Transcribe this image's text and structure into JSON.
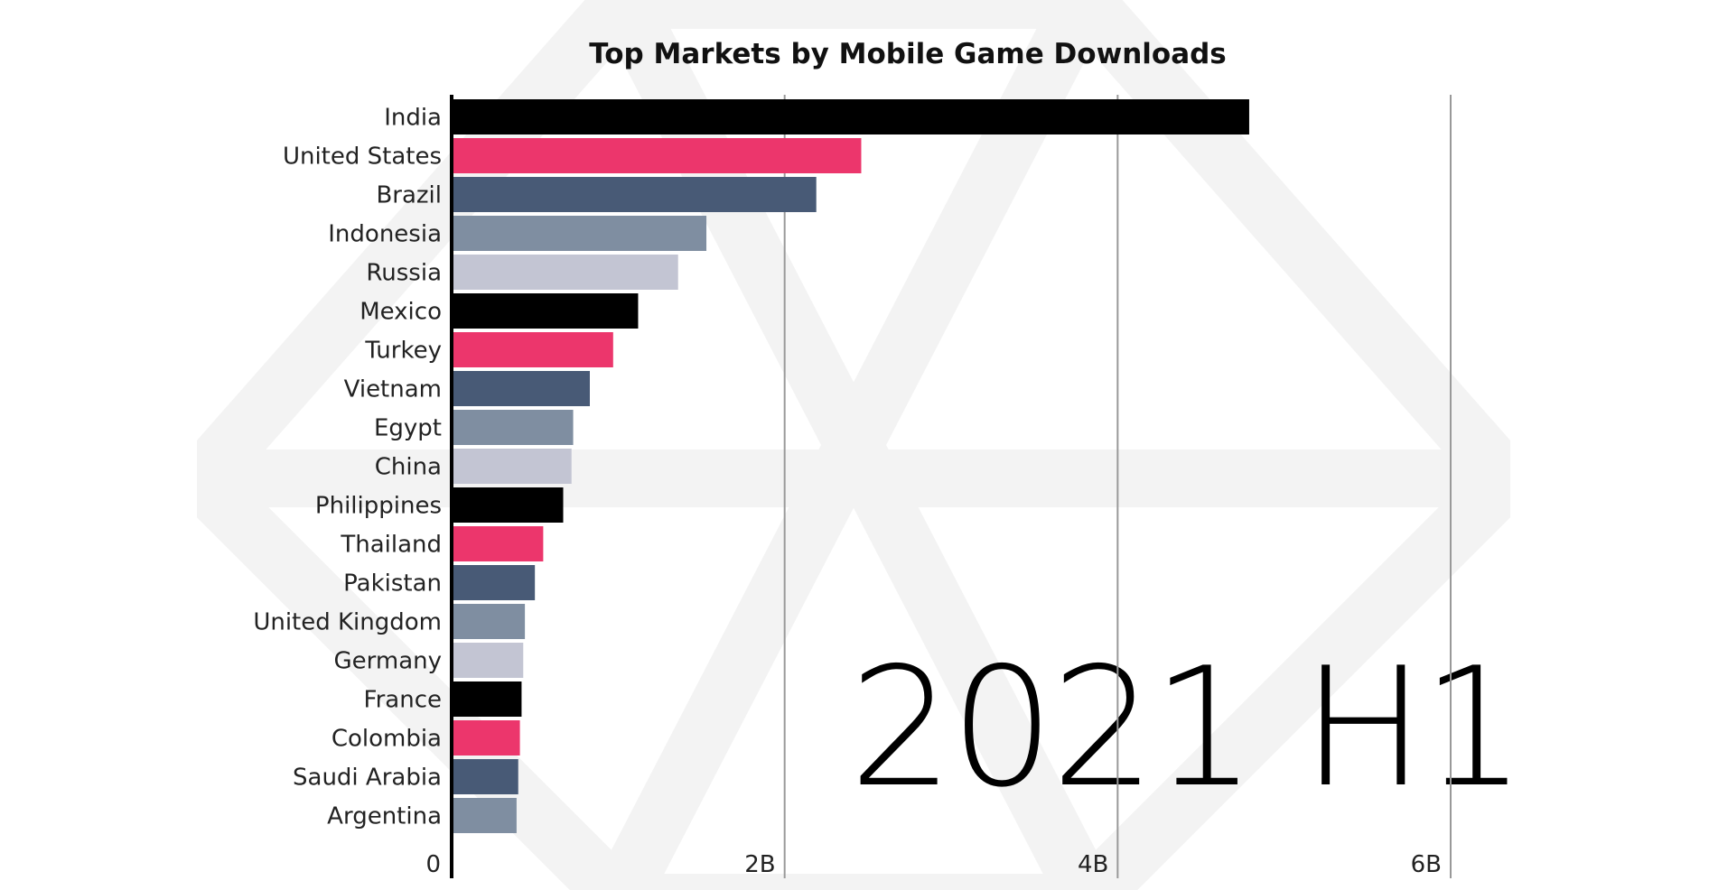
{
  "chart_data": {
    "type": "bar",
    "orientation": "horizontal",
    "title": "Top Markets by Mobile Game Downloads",
    "period_label": "2021 H1",
    "categories": [
      "India",
      "United States",
      "Brazil",
      "Indonesia",
      "Russia",
      "Mexico",
      "Turkey",
      "Vietnam",
      "Egypt",
      "China",
      "Philippines",
      "Thailand",
      "Pakistan",
      "United Kingdom",
      "Germany",
      "France",
      "Colombia",
      "Saudi Arabia",
      "Argentina"
    ],
    "values": [
      4.79,
      2.46,
      2.19,
      1.53,
      1.36,
      1.12,
      0.97,
      0.83,
      0.73,
      0.72,
      0.67,
      0.55,
      0.5,
      0.44,
      0.43,
      0.42,
      0.41,
      0.4,
      0.39
    ],
    "unit": "B",
    "xlim": [
      0,
      6
    ],
    "xticks": [
      0,
      2,
      4,
      6
    ],
    "xtick_labels": [
      "0",
      "2B",
      "4B",
      "6B"
    ],
    "grid": true,
    "color_cycle": [
      "#000000",
      "#ec366c",
      "#485a76",
      "#7f8ea1",
      "#c3c5d3"
    ]
  }
}
